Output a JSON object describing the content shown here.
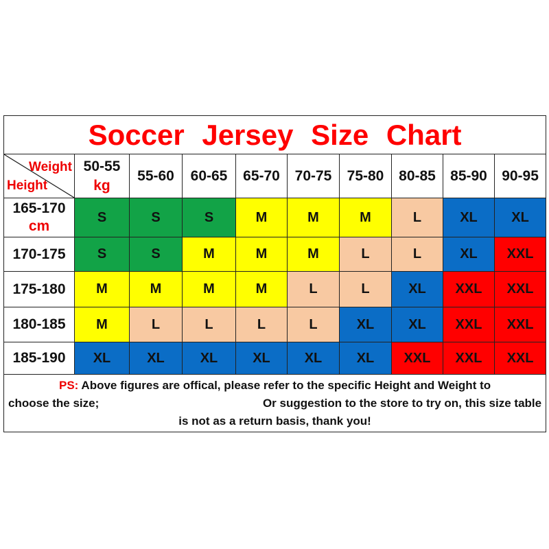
{
  "title": "Soccer  Jersey  Size  Chart",
  "corner": {
    "weight_label": "Weight",
    "height_label": "Height"
  },
  "weight_columns": [
    "50-55",
    "55-60",
    "60-65",
    "65-70",
    "70-75",
    "75-80",
    "80-85",
    "85-90",
    "90-95"
  ],
  "weight_unit": "kg",
  "height_unit": "cm",
  "rows": [
    {
      "height": "165-170",
      "sizes": [
        "S",
        "S",
        "S",
        "M",
        "M",
        "M",
        "L",
        "XL",
        "XL"
      ]
    },
    {
      "height": "170-175",
      "sizes": [
        "S",
        "S",
        "M",
        "M",
        "M",
        "L",
        "L",
        "XL",
        "XXL"
      ]
    },
    {
      "height": "175-180",
      "sizes": [
        "M",
        "M",
        "M",
        "M",
        "L",
        "L",
        "XL",
        "XXL",
        "XXL"
      ]
    },
    {
      "height": "180-185",
      "sizes": [
        "M",
        "L",
        "L",
        "L",
        "L",
        "XL",
        "XL",
        "XXL",
        "XXL"
      ]
    },
    {
      "height": "185-190",
      "sizes": [
        "XL",
        "XL",
        "XL",
        "XL",
        "XL",
        "XL",
        "XXL",
        "XXL",
        "XXL"
      ]
    }
  ],
  "size_colors": {
    "S": "#12a347",
    "M": "#ffff00",
    "L": "#f8c9a2",
    "XL": "#0b6dc6",
    "XXL": "#ff0000"
  },
  "footer": {
    "ps_label": "PS:",
    "line1": " Above figures are offical, please refer to the specific Height and Weight to",
    "line2_left": "choose the size;",
    "line2_right": "Or suggestion to the store to try on, this size table",
    "line3": "is not as a return basis, thank you!"
  }
}
